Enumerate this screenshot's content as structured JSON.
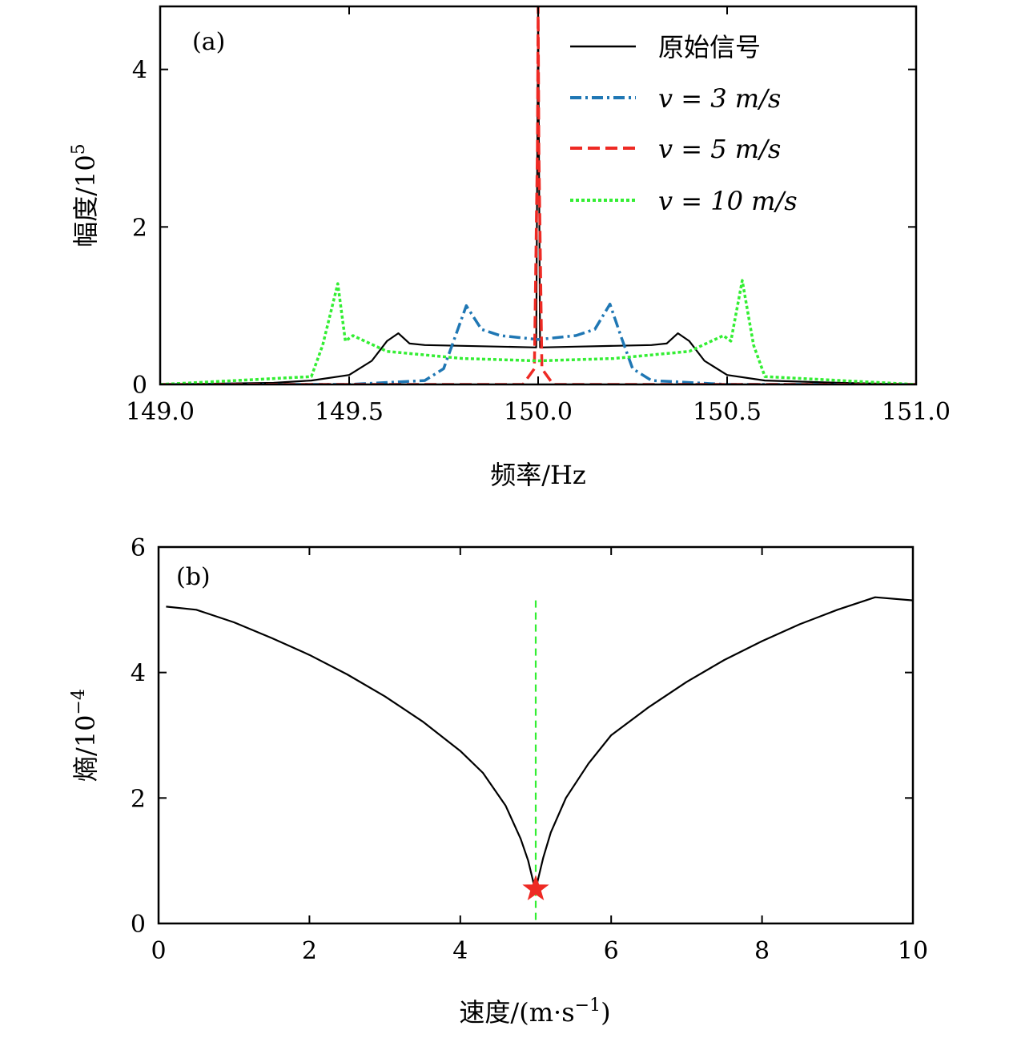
{
  "chart_data": [
    {
      "panel": "(a)",
      "type": "line",
      "xlabel": "频率/Hz",
      "ylabel": "幅度/10",
      "ylabel_sup": "5",
      "xlim": [
        149.0,
        151.0
      ],
      "ylim": [
        0,
        4.8
      ],
      "xticks": [
        149.0,
        149.5,
        150.0,
        150.5,
        151.0
      ],
      "xtick_labels": [
        "149.0",
        "149.5",
        "150.0",
        "150.5",
        "151.0"
      ],
      "yticks": [
        0,
        2,
        4
      ],
      "ytick_labels": [
        "0",
        "2",
        "4"
      ],
      "legend_position": "top-right",
      "series": [
        {
          "name": "原始信号",
          "color": "#000000",
          "style": "solid",
          "x": [
            149.0,
            149.3,
            149.4,
            149.5,
            149.56,
            149.6,
            149.63,
            149.66,
            149.7,
            149.8,
            149.9,
            149.995,
            150.0,
            150.005,
            150.1,
            150.2,
            150.3,
            150.34,
            150.37,
            150.4,
            150.44,
            150.5,
            150.6,
            150.8,
            151.0
          ],
          "y": [
            0.0,
            0.02,
            0.05,
            0.12,
            0.3,
            0.55,
            0.65,
            0.52,
            0.5,
            0.49,
            0.48,
            0.47,
            4.8,
            0.47,
            0.48,
            0.49,
            0.5,
            0.52,
            0.65,
            0.55,
            0.3,
            0.12,
            0.05,
            0.02,
            0.0
          ]
        },
        {
          "name": "v = 3 m/s",
          "color": "#1f77b4",
          "style": "dashdot",
          "x": [
            149.0,
            149.5,
            149.7,
            149.75,
            149.78,
            149.81,
            149.85,
            149.9,
            150.0,
            150.1,
            150.15,
            150.19,
            150.22,
            150.25,
            150.3,
            150.5,
            151.0
          ],
          "y": [
            0.0,
            0.0,
            0.05,
            0.2,
            0.6,
            1.0,
            0.7,
            0.62,
            0.57,
            0.62,
            0.7,
            1.02,
            0.6,
            0.2,
            0.05,
            0.0,
            0.0
          ]
        },
        {
          "name": "v = 5 m/s",
          "color": "#ee2a24",
          "style": "dashed",
          "x": [
            149.0,
            149.96,
            149.99,
            149.998,
            150.0,
            150.002,
            150.01,
            150.04,
            151.0
          ],
          "y": [
            0.0,
            0.0,
            0.2,
            3.0,
            4.8,
            3.0,
            0.2,
            0.0,
            0.0
          ]
        },
        {
          "name": "v = 10 m/s",
          "color": "#33ee33",
          "style": "dotted",
          "x": [
            149.0,
            149.4,
            149.43,
            149.47,
            149.49,
            149.51,
            149.6,
            149.8,
            150.0,
            150.2,
            150.4,
            150.49,
            150.51,
            150.54,
            150.57,
            150.6,
            151.0
          ],
          "y": [
            0.0,
            0.1,
            0.5,
            1.28,
            0.55,
            0.62,
            0.42,
            0.33,
            0.3,
            0.33,
            0.42,
            0.62,
            0.55,
            1.32,
            0.5,
            0.1,
            0.0
          ]
        }
      ]
    },
    {
      "panel": "(b)",
      "type": "line",
      "xlabel": "速度/(m·s",
      "xlabel_sup": "−1",
      "xlabel_tail": ")",
      "ylabel": "熵/10",
      "ylabel_sup": "−4",
      "xlim": [
        0,
        10
      ],
      "ylim": [
        0,
        6
      ],
      "xticks": [
        0,
        2,
        4,
        6,
        8,
        10
      ],
      "xtick_labels": [
        "0",
        "2",
        "4",
        "6",
        "8",
        "10"
      ],
      "yticks": [
        0,
        2,
        4,
        6
      ],
      "ytick_labels": [
        "0",
        "2",
        "4",
        "6"
      ],
      "series": [
        {
          "name": "entropy",
          "color": "#000000",
          "style": "solid",
          "x": [
            0.1,
            0.5,
            1.0,
            1.5,
            2.0,
            2.5,
            3.0,
            3.5,
            4.0,
            4.3,
            4.6,
            4.8,
            4.9,
            4.97,
            5.0,
            5.03,
            5.1,
            5.2,
            5.4,
            5.7,
            6.0,
            6.5,
            7.0,
            7.5,
            8.0,
            8.5,
            9.0,
            9.5,
            10.0
          ],
          "y": [
            5.05,
            5.0,
            4.8,
            4.55,
            4.28,
            3.97,
            3.62,
            3.22,
            2.75,
            2.4,
            1.88,
            1.35,
            1.0,
            0.65,
            0.55,
            0.7,
            1.05,
            1.45,
            2.0,
            2.55,
            3.0,
            3.45,
            3.85,
            4.2,
            4.5,
            4.77,
            5.0,
            5.2,
            5.15
          ]
        }
      ],
      "vline": {
        "x": 5.0,
        "y_top": 5.15,
        "color": "#33ee33",
        "style": "dashed"
      },
      "marker": {
        "x": 5.0,
        "y": 0.55,
        "symbol": "star",
        "color": "#ee2a24"
      }
    }
  ]
}
